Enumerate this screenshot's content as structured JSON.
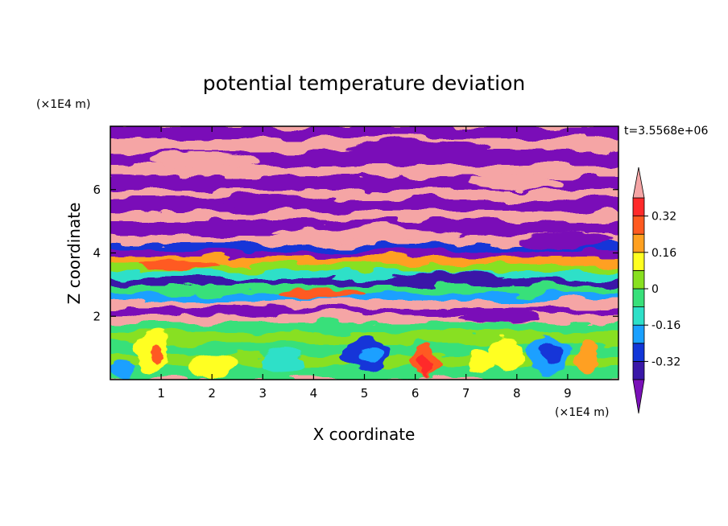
{
  "chart_data": {
    "type": "heatmap",
    "title": "potential temperature deviation",
    "xlabel": "X coordinate",
    "ylabel": "Z coordinate",
    "x_unit": "(×1E4 m)",
    "y_unit": "(×1E4 m)",
    "time_label": "t=3.5568e+06",
    "xlim": [
      0,
      10
    ],
    "ylim": [
      0,
      8
    ],
    "x_ticks": [
      "1",
      "2",
      "3",
      "4",
      "5",
      "6",
      "7",
      "8",
      "9"
    ],
    "y_ticks": [
      "2",
      "4",
      "6"
    ],
    "colorbar": {
      "labels": [
        "0.32",
        "0.16",
        "0",
        "-0.16",
        "-0.32"
      ],
      "label_values": [
        0.32,
        0.16,
        0,
        -0.16,
        -0.32
      ],
      "levels": [
        -0.4,
        -0.32,
        -0.24,
        -0.16,
        -0.08,
        0,
        0.08,
        0.16,
        0.24,
        0.32,
        0.4
      ],
      "colors": [
        "#7a10b8",
        "#3a18a8",
        "#1236d8",
        "#1aa0ff",
        "#2ee0c8",
        "#38e07a",
        "#88e020",
        "#ffff20",
        "#ffa020",
        "#ff5a20",
        "#ff2a2a",
        "#f5a5a5"
      ],
      "extend": "both"
    },
    "layers": [
      {
        "z": [
          7.2,
          8.0
        ],
        "value": 0.45,
        "description": "alternating bands"
      },
      {
        "z": [
          4.2,
          7.2
        ],
        "value": 0.45
      },
      {
        "z": [
          2.0,
          4.2
        ],
        "value": 0.0
      },
      {
        "z": [
          0.0,
          2.0
        ],
        "value": -0.05
      }
    ]
  }
}
